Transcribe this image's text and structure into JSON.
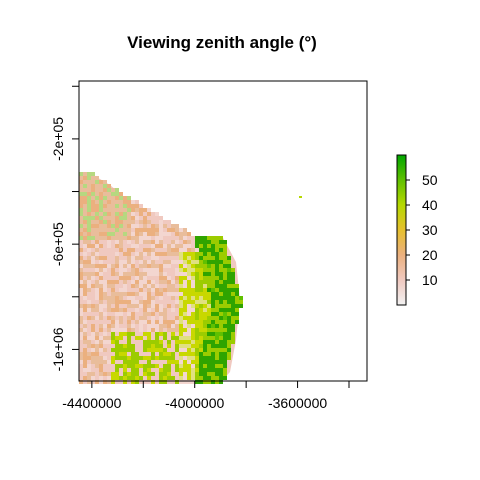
{
  "chart_data": {
    "type": "heatmap",
    "title": "Viewing zenith angle (°)",
    "xlabel": "",
    "ylabel": "",
    "xlim": [
      -4450000,
      -3330000
    ],
    "ylim": [
      -1120000,
      20000
    ],
    "x_ticks": [
      {
        "value": -4400000,
        "label": "-4400000"
      },
      {
        "value": -4200000,
        "label": ""
      },
      {
        "value": -4000000,
        "label": "-4000000"
      },
      {
        "value": -3800000,
        "label": ""
      },
      {
        "value": -3600000,
        "label": "-3600000"
      },
      {
        "value": -3400000,
        "label": ""
      }
    ],
    "y_ticks": [
      {
        "value": -1000000,
        "label": "-1e+06"
      },
      {
        "value": -800000,
        "label": ""
      },
      {
        "value": -600000,
        "label": "-6e+05"
      },
      {
        "value": -400000,
        "label": ""
      },
      {
        "value": -200000,
        "label": "-2e+05"
      },
      {
        "value": 0,
        "label": ""
      }
    ],
    "colorbar": {
      "range": [
        0,
        60
      ],
      "ticks": [
        {
          "value": 10,
          "label": "10"
        },
        {
          "value": 20,
          "label": "20"
        },
        {
          "value": 30,
          "label": "30"
        },
        {
          "value": 40,
          "label": "40"
        },
        {
          "value": 50,
          "label": "50"
        }
      ],
      "colors": [
        "#f2f2f2",
        "#f0c9c0",
        "#ebb07f",
        "#e6c02e",
        "#b6d800",
        "#60c000",
        "#00a600"
      ]
    }
  }
}
